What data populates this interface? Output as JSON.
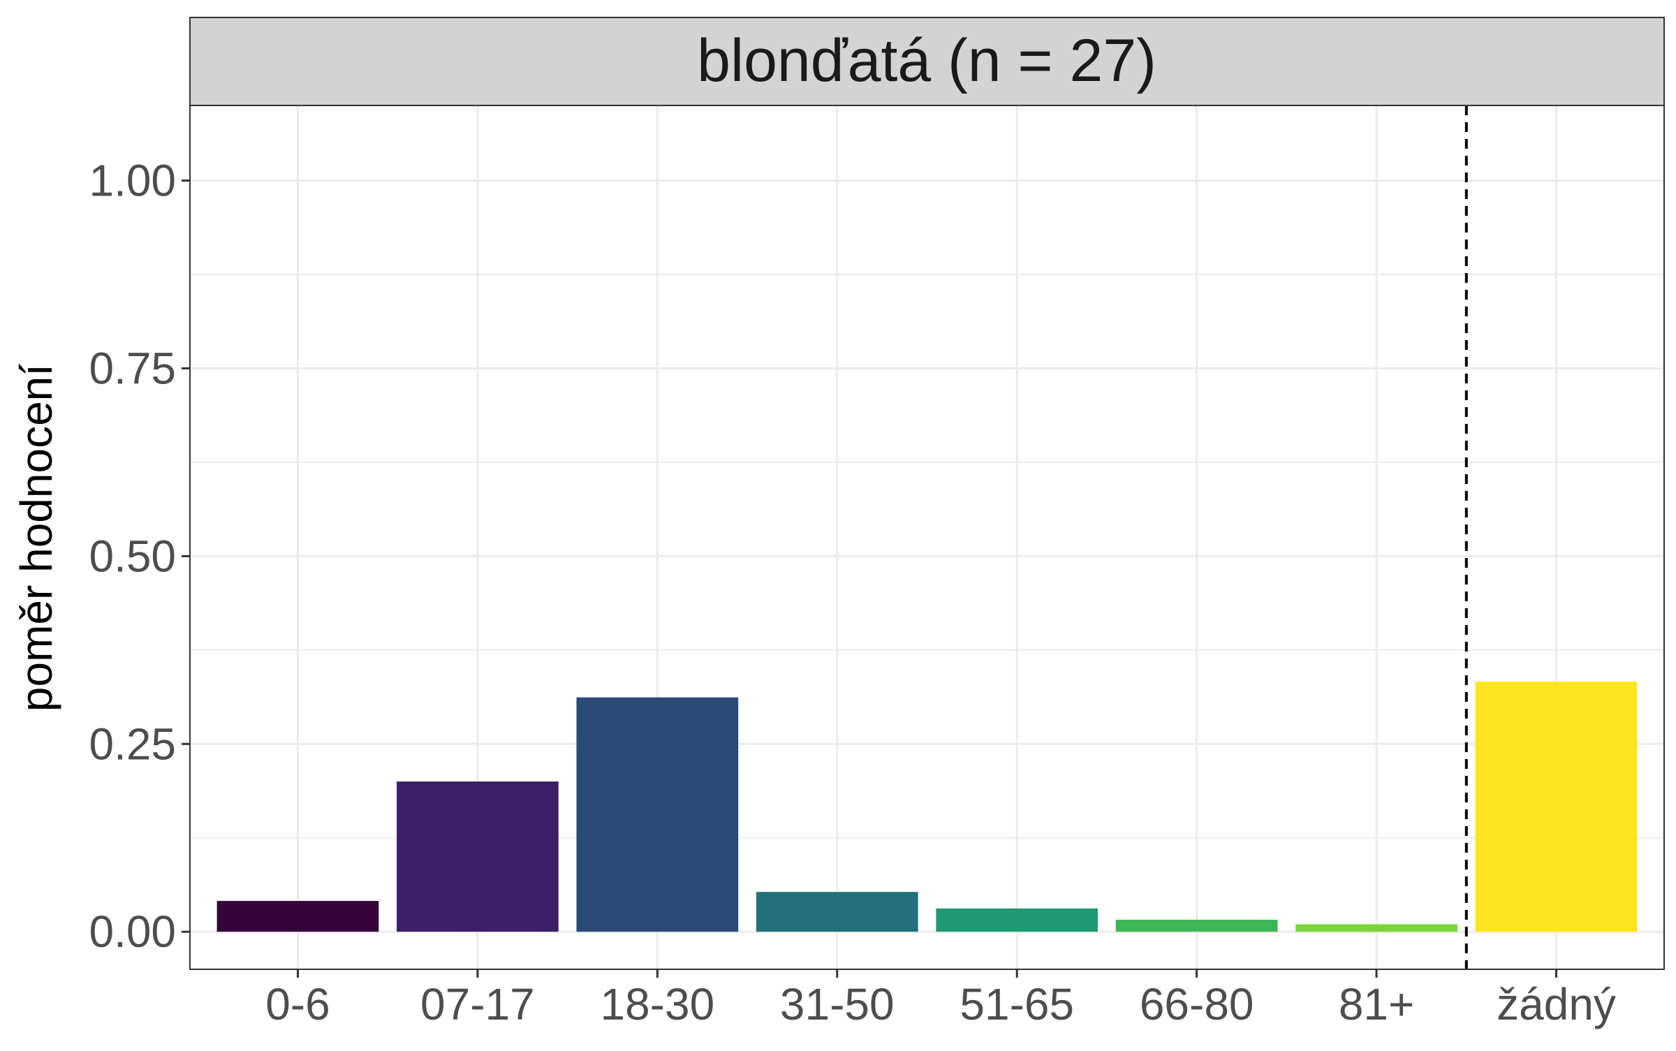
{
  "chart_data": {
    "type": "bar",
    "facet_title": "blonďatá (n = 27)",
    "ylabel": "poměr hodnocení",
    "xlabel": "",
    "ylim": [
      -0.05,
      1.1
    ],
    "y_ticks": [
      "0.00",
      "0.25",
      "0.50",
      "0.75",
      "1.00"
    ],
    "y_tick_values": [
      0,
      0.25,
      0.5,
      0.75,
      1.0
    ],
    "categories": [
      "0-6",
      "07-17",
      "18-30",
      "31-50",
      "51-65",
      "66-80",
      "81+",
      "žádný"
    ],
    "values": [
      0.041,
      0.2,
      0.312,
      0.053,
      0.031,
      0.016,
      0.01,
      0.333
    ],
    "colors": [
      "#35043b",
      "#392066",
      "#2b4a78",
      "#21707b",
      "#1f9a72",
      "#3db755",
      "#7ad43a",
      "#fde51f"
    ],
    "reference_line": {
      "style": "dashed",
      "between": [
        "81+",
        "žádný"
      ]
    },
    "grid": true,
    "legend": "none"
  }
}
